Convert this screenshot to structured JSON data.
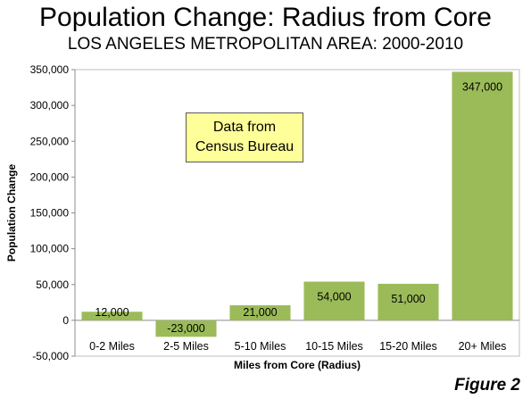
{
  "header": {
    "title": "Population Change: Radius from Core",
    "subtitle": "LOS ANGELES METROPOLITAN AREA: 2000-2010"
  },
  "annotation": {
    "line1": "Data from",
    "line2": "Census Bureau",
    "background": "#ffff99"
  },
  "figure_label": "Figure 2",
  "chart_data": {
    "type": "bar",
    "title": "Population Change: Radius from Core",
    "subtitle": "LOS ANGELES METROPOLITAN AREA: 2000-2010",
    "xlabel": "Miles from Core (Radius)",
    "ylabel": "Population Change",
    "categories": [
      "0-2 Miles",
      "2-5 Miles",
      "5-10 Miles",
      "10-15 Miles",
      "15-20 Miles",
      "20+ Miles"
    ],
    "values": [
      12000,
      -23000,
      21000,
      54000,
      51000,
      347000
    ],
    "data_labels": [
      "12,000",
      "-23,000",
      "21,000",
      "54,000",
      "51,000",
      "347,000"
    ],
    "ylim": [
      -50000,
      350000
    ],
    "yticks": [
      -50000,
      0,
      50000,
      100000,
      150000,
      200000,
      250000,
      300000,
      350000
    ],
    "ytick_labels": [
      "-50,000",
      "0",
      "50,000",
      "100,000",
      "150,000",
      "200,000",
      "250,000",
      "300,000",
      "350,000"
    ],
    "bar_color": "#9bbb59",
    "grid": false,
    "legend": "none"
  }
}
